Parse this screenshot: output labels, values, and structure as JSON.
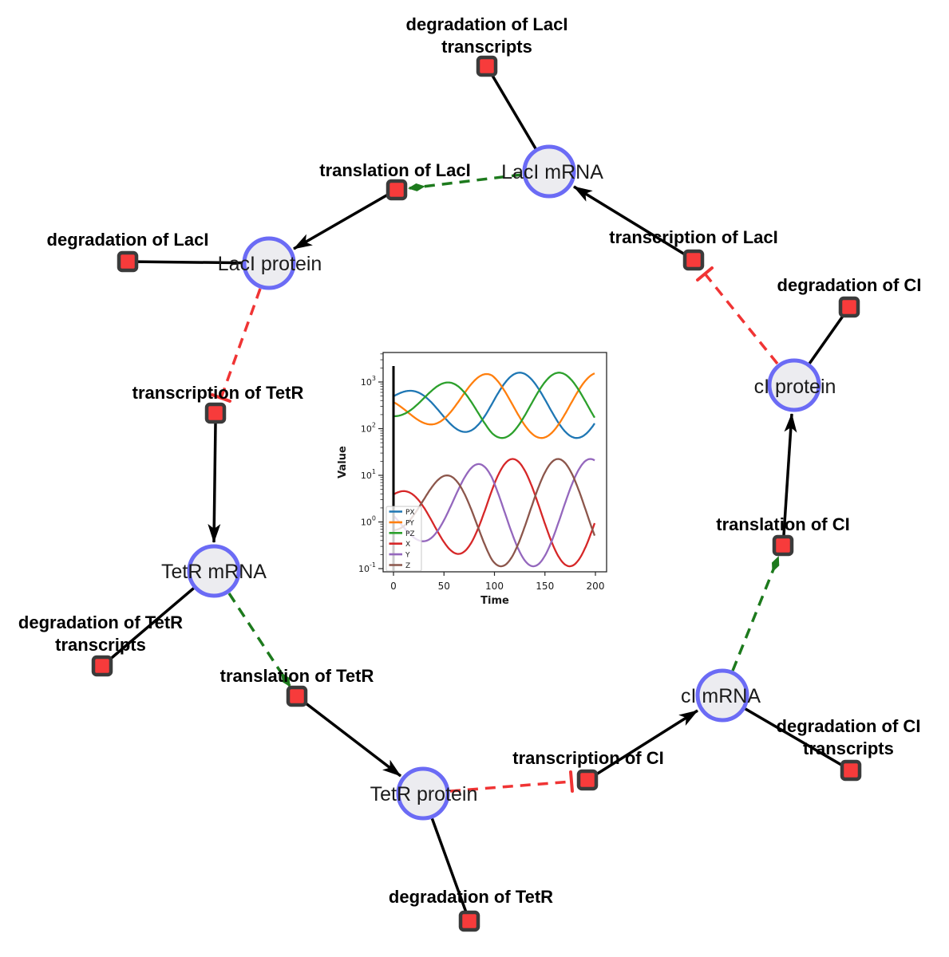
{
  "network": {
    "species": {
      "laci_mrna": {
        "label": "LacI mRNA"
      },
      "laci_protein": {
        "label": "LacI protein"
      },
      "ci_protein": {
        "label": "cI protein"
      },
      "tetr_mrna": {
        "label": "TetR mRNA"
      },
      "ci_mrna": {
        "label": "cI mRNA"
      },
      "tetr_protein": {
        "label": "TetR protein"
      }
    },
    "reactions": {
      "deg_laci_transcripts": {
        "lines": [
          "degradation of LacI",
          "transcripts"
        ]
      },
      "translation_laci": {
        "lines": [
          "translation of LacI"
        ]
      },
      "deg_laci": {
        "lines": [
          "degradation of LacI"
        ]
      },
      "transcription_laci": {
        "lines": [
          "transcription of LacI"
        ]
      },
      "deg_ci": {
        "lines": [
          "degradation of CI"
        ]
      },
      "transcription_tetr": {
        "lines": [
          "transcription of TetR"
        ]
      },
      "deg_tetr_transcripts": {
        "lines": [
          "degradation of TetR",
          "transcripts"
        ]
      },
      "translation_tetr": {
        "lines": [
          "translation of TetR"
        ]
      },
      "deg_tetr": {
        "lines": [
          "degradation of TetR"
        ]
      },
      "transcription_ci": {
        "lines": [
          "transcription of CI"
        ]
      },
      "deg_ci_transcripts": {
        "lines": [
          "degradation of CI",
          "transcripts"
        ]
      },
      "translation_ci": {
        "lines": [
          "translation of CI"
        ]
      }
    },
    "colors": {
      "species_fill": "#ececf0",
      "species_border": "#6b6bf5",
      "reaction_fill": "#f73b3b",
      "reaction_border": "#3b3b3b",
      "edge_black": "#000000",
      "activation_green": "#1d7a1d",
      "inhibition_red": "#f03434"
    }
  },
  "chart_data": {
    "type": "line",
    "title": "",
    "xlabel": "Time",
    "ylabel": "Value",
    "yscale": "log",
    "xlim": [
      -10,
      211
    ],
    "ylim_log": [
      -1.07,
      3.63
    ],
    "x_ticks": [
      0,
      50,
      100,
      150,
      200
    ],
    "y_tick_exponents": [
      3,
      2,
      1,
      0,
      -1
    ],
    "grid": false,
    "legend_position": "lower left",
    "initial_spike_x": 0,
    "oscillation": {
      "period": 113,
      "amp_growth_base": 0.35,
      "amp_growth_rate": 0.00667,
      "t_end": 200
    },
    "series": [
      {
        "name": "PX",
        "color": "#1f77b4",
        "log_center": 2.5,
        "log_amp": 0.7,
        "peak_t": 125,
        "approx_range": [
          63,
          1600
        ]
      },
      {
        "name": "PY",
        "color": "#ff7f0e",
        "log_center": 2.5,
        "log_amp": 0.7,
        "peak_t": 90,
        "approx_range": [
          63,
          1600
        ]
      },
      {
        "name": "PZ",
        "color": "#2ca02c",
        "log_center": 2.5,
        "log_amp": 0.7,
        "peak_t": 164,
        "approx_range": [
          63,
          1600
        ]
      },
      {
        "name": "X",
        "color": "#d62728",
        "log_center": 0.2,
        "log_amp": 1.15,
        "peak_t": 118,
        "approx_range": [
          0.16,
          22
        ]
      },
      {
        "name": "Y",
        "color": "#9467bd",
        "log_center": 0.2,
        "log_amp": 1.15,
        "peak_t": 82,
        "approx_range": [
          0.16,
          22
        ]
      },
      {
        "name": "Z",
        "color": "#8c564b",
        "log_center": 0.2,
        "log_amp": 1.15,
        "peak_t": 50,
        "approx_range": [
          0.16,
          22
        ]
      }
    ]
  }
}
